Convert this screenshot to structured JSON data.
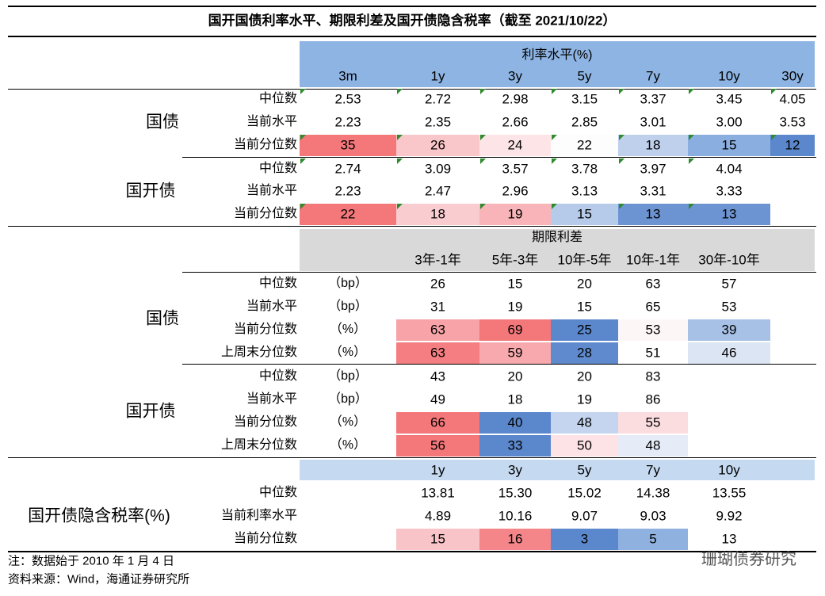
{
  "title": "国开国债利率水平、期限利差及国开债隐含税率（截至 2021/10/22）",
  "section1": {
    "header": "利率水平(%)",
    "header_color": "#8db4e2",
    "columns": [
      "3m",
      "1y",
      "3y",
      "5y",
      "7y",
      "10y",
      "30y"
    ],
    "groups": [
      {
        "name": "国债",
        "rows": [
          {
            "label": "中位数",
            "values": [
              "2.53",
              "2.72",
              "2.98",
              "3.15",
              "3.37",
              "3.45",
              "4.05"
            ]
          },
          {
            "label": "当前水平",
            "values": [
              "2.23",
              "2.35",
              "2.66",
              "2.85",
              "3.01",
              "3.00",
              "3.53"
            ]
          },
          {
            "label": "当前分位数",
            "values": [
              "35",
              "26",
              "24",
              "22",
              "18",
              "15",
              "12"
            ],
            "colors": [
              "#f4777a",
              "#f9c6c9",
              "#fde5e7",
              "#fdfdfd",
              "#bed0ec",
              "#8aaee0",
              "#5b87cc"
            ]
          }
        ]
      },
      {
        "name": "国开债",
        "rows": [
          {
            "label": "中位数",
            "values": [
              "2.74",
              "3.09",
              "3.57",
              "3.78",
              "3.97",
              "4.04"
            ]
          },
          {
            "label": "当前水平",
            "values": [
              "2.23",
              "2.47",
              "2.96",
              "3.13",
              "3.31",
              "3.33"
            ]
          },
          {
            "label": "当前分位数",
            "values": [
              "22",
              "18",
              "19",
              "15",
              "13",
              "13"
            ],
            "colors": [
              "#f4777a",
              "#f9cdd0",
              "#f8b4b8",
              "#b6cbea",
              "#6c93d2",
              "#6c93d2"
            ]
          }
        ]
      }
    ]
  },
  "section2": {
    "header": "期限利差",
    "header_color": "#d9d9d9",
    "columns": [
      "3年-1年",
      "5年-3年",
      "10年-5年",
      "10年-1年",
      "30年-10年"
    ],
    "groups": [
      {
        "name": "国债",
        "rows": [
          {
            "label": "中位数",
            "unit": "（bp）",
            "values": [
              "26",
              "15",
              "20",
              "63",
              "57"
            ]
          },
          {
            "label": "当前水平",
            "unit": "（bp）",
            "values": [
              "31",
              "19",
              "15",
              "65",
              "53"
            ]
          },
          {
            "label": "当前分位数",
            "unit": "（%）",
            "values": [
              "63",
              "69",
              "25",
              "53",
              "39"
            ],
            "colors": [
              "#f7a3a7",
              "#f4777a",
              "#5b87cc",
              "#fdf6f7",
              "#a7c0e6"
            ]
          },
          {
            "label": "上周末分位数",
            "unit": "（%）",
            "values": [
              "63",
              "59",
              "28",
              "51",
              "46"
            ],
            "colors": [
              "#f47e81",
              "#f8a9ad",
              "#5f8acd",
              "#ffffff",
              "#dce5f4"
            ]
          }
        ]
      },
      {
        "name": "国开债",
        "rows": [
          {
            "label": "中位数",
            "unit": "（bp）",
            "values": [
              "43",
              "20",
              "20",
              "83"
            ]
          },
          {
            "label": "当前水平",
            "unit": "（bp）",
            "values": [
              "49",
              "18",
              "19",
              "86"
            ]
          },
          {
            "label": "当前分位数",
            "unit": "（%）",
            "values": [
              "66",
              "40",
              "48",
              "55"
            ],
            "colors": [
              "#f4777a",
              "#5b87cc",
              "#c5d5ef",
              "#fbdde0"
            ]
          },
          {
            "label": "上周末分位数",
            "unit": "（%）",
            "values": [
              "56",
              "33",
              "50",
              "48"
            ],
            "colors": [
              "#f4777a",
              "#5b87cc",
              "#fde3e6",
              "#e6ecf7"
            ]
          }
        ]
      }
    ]
  },
  "section3": {
    "header_color": "#c5d9f1",
    "columns": [
      "1y",
      "3y",
      "5y",
      "7y",
      "10y"
    ],
    "groups": [
      {
        "name": "国开债隐含税率(%)",
        "rows": [
          {
            "label": "中位数",
            "values": [
              "13.81",
              "15.30",
              "15.02",
              "14.38",
              "13.55"
            ]
          },
          {
            "label": "当前利率水平",
            "values": [
              "4.89",
              "10.16",
              "9.07",
              "9.03",
              "9.92"
            ]
          },
          {
            "label": "当前分位数",
            "values": [
              "15",
              "16",
              "3",
              "5",
              "13"
            ],
            "colors": [
              "#f9c4c8",
              "#f4868a",
              "#5b87cc",
              "#8fb1e0",
              "#ffffff"
            ]
          }
        ]
      }
    ]
  },
  "notes": [
    "注：数据始于 2010 年 1 月 4 日",
    "资料来源：Wind，海通证券研究所"
  ],
  "watermark": "珊瑚债券研究"
}
